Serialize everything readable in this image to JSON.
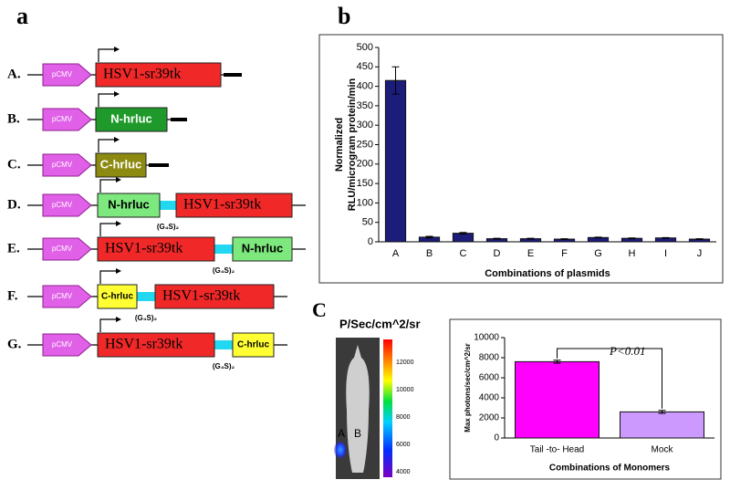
{
  "panels": {
    "a": "a",
    "b": "b",
    "c": "C"
  },
  "constructs": {
    "promoter": "pCMV",
    "linker": "(G₄S)₂",
    "rows": [
      {
        "label": "A.",
        "parts": [
          {
            "text": "HSV1-sr39tk",
            "color": "#f02828"
          }
        ]
      },
      {
        "label": "B.",
        "parts": [
          {
            "text": "N-hrluc",
            "color": "#1f9a2a"
          }
        ]
      },
      {
        "label": "C.",
        "parts": [
          {
            "text": "C-hrluc",
            "color": "#8c8a10"
          }
        ]
      },
      {
        "label": "D.",
        "parts": [
          {
            "text": "N-hrluc",
            "color": "#7de87d"
          },
          {
            "text": "HSV1-sr39tk",
            "color": "#f02828"
          }
        ]
      },
      {
        "label": "E.",
        "parts": [
          {
            "text": "HSV1-sr39tk",
            "color": "#f02828"
          },
          {
            "text": "N-hrluc",
            "color": "#7de87d"
          }
        ]
      },
      {
        "label": "F.",
        "parts": [
          {
            "text": "C-hrluc",
            "color": "#ffff33"
          },
          {
            "text": "HSV1-sr39tk",
            "color": "#f02828"
          }
        ]
      },
      {
        "label": "G.",
        "parts": [
          {
            "text": "HSV1-sr39tk",
            "color": "#f02828"
          },
          {
            "text": "C-hrluc",
            "color": "#ffff33"
          }
        ]
      }
    ]
  },
  "imaging": {
    "title": "P/Sec/cm^2/sr",
    "labels": [
      "A",
      "B"
    ],
    "colorbar_ticks": [
      12000,
      10000,
      8000,
      6000,
      4000
    ]
  },
  "chart_data": [
    {
      "type": "bar",
      "categories": [
        "A",
        "B",
        "C",
        "D",
        "E",
        "F",
        "G",
        "H",
        "I",
        "J"
      ],
      "values": [
        415,
        12,
        22,
        8,
        8,
        7,
        11,
        9,
        10,
        7
      ],
      "errors": [
        35,
        2,
        2,
        1,
        1,
        1,
        1,
        1,
        1,
        1
      ],
      "color": "#1c1c7a",
      "ylim": [
        0,
        500
      ],
      "yticks": [
        0,
        50,
        100,
        150,
        200,
        250,
        300,
        350,
        400,
        450,
        500
      ],
      "ylabel": [
        "Normalized",
        "RLU/microgram protein/min"
      ],
      "xlabel": "Combinations of plasmids"
    },
    {
      "type": "bar",
      "categories": [
        "Tail -to- Head",
        "Mock"
      ],
      "values": [
        7600,
        2600
      ],
      "errors": [
        150,
        150
      ],
      "colors": [
        "#ff00ff",
        "#cc99ff"
      ],
      "ylim": [
        0,
        10000
      ],
      "yticks": [
        0,
        2000,
        4000,
        6000,
        8000,
        10000
      ],
      "ylabel": "Max photons/sec/cm^2/sr",
      "xlabel": "Combinations of Monomers",
      "annotation": "P<0.01"
    }
  ]
}
